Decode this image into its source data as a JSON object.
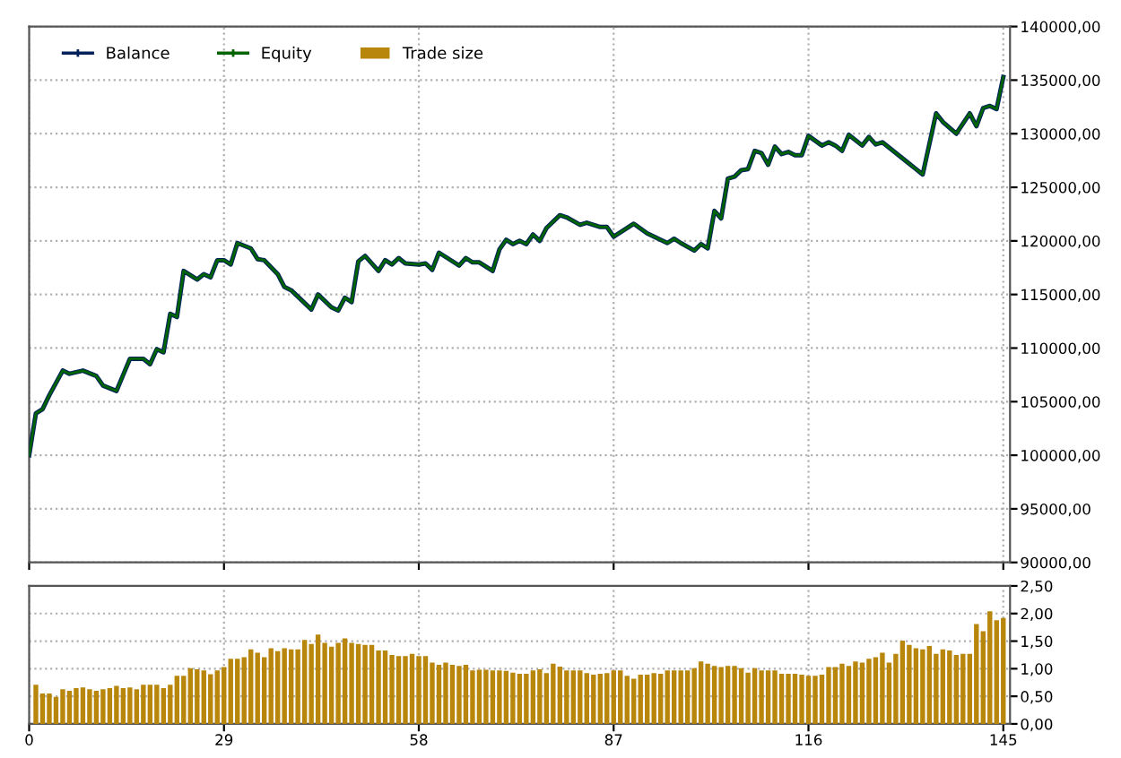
{
  "chart_data": [
    {
      "type": "line",
      "x": [
        0,
        1,
        2,
        3,
        5,
        6,
        8,
        10,
        11,
        13,
        14,
        15,
        17,
        18,
        19,
        20,
        21,
        22,
        23,
        25,
        26,
        27,
        28,
        29,
        30,
        31,
        33,
        34,
        35,
        37,
        38,
        39,
        42,
        43,
        45,
        46,
        47,
        48,
        49,
        50,
        52,
        53,
        54,
        55,
        56,
        58,
        59,
        60,
        61,
        64,
        65,
        66,
        67,
        69,
        70,
        71,
        72,
        73,
        74,
        75,
        76,
        77,
        79,
        80,
        82,
        83,
        85,
        86,
        87,
        90,
        92,
        95,
        96,
        97,
        99,
        100,
        101,
        102,
        103,
        104,
        105,
        106,
        107,
        108,
        109,
        110,
        111,
        112,
        113,
        114,
        115,
        116,
        118,
        119,
        120,
        121,
        122,
        124,
        125,
        126,
        127,
        133,
        135,
        136,
        138,
        140,
        141,
        142,
        143,
        144,
        145
      ],
      "series": [
        {
          "name": "Balance",
          "color": "#00205a",
          "values": [
            100000,
            103900,
            104300,
            105600,
            107900,
            107600,
            107900,
            107400,
            106500,
            106000,
            107500,
            109000,
            109000,
            108500,
            109900,
            109600,
            113200,
            112900,
            117200,
            116400,
            116900,
            116600,
            118200,
            118200,
            117800,
            119800,
            119300,
            118300,
            118200,
            116900,
            115700,
            115400,
            113600,
            115000,
            113800,
            113500,
            114700,
            114300,
            118100,
            118600,
            117200,
            118200,
            117800,
            118400,
            117900,
            117800,
            117900,
            117300,
            118900,
            117700,
            118400,
            118000,
            118000,
            117200,
            119200,
            120100,
            119700,
            120000,
            119700,
            120600,
            120000,
            121200,
            122400,
            122200,
            121500,
            121700,
            121300,
            121300,
            120400,
            121600,
            120700,
            119800,
            120200,
            119800,
            119100,
            119700,
            119300,
            122800,
            122100,
            125800,
            126000,
            126600,
            126700,
            128400,
            128200,
            127100,
            128800,
            128100,
            128300,
            128000,
            128000,
            129800,
            128900,
            129200,
            128900,
            128400,
            129900,
            128900,
            129700,
            129000,
            129200,
            126200,
            131900,
            131100,
            130000,
            131900,
            130700,
            132400,
            132600,
            132300,
            135300
          ]
        },
        {
          "name": "Equity",
          "color": "#006400",
          "values": [
            100000,
            103900,
            104300,
            105600,
            107900,
            107600,
            107900,
            107400,
            106500,
            106000,
            107500,
            109000,
            109000,
            108500,
            109900,
            109600,
            113200,
            112900,
            117200,
            116400,
            116900,
            116600,
            118200,
            118200,
            117800,
            119800,
            119300,
            118300,
            118200,
            116900,
            115700,
            115400,
            113600,
            115000,
            113800,
            113500,
            114700,
            114300,
            118100,
            118600,
            117200,
            118200,
            117800,
            118400,
            117900,
            117800,
            117900,
            117300,
            118900,
            117700,
            118400,
            118000,
            118000,
            117200,
            119200,
            120100,
            119700,
            120000,
            119700,
            120600,
            120000,
            121200,
            122400,
            122200,
            121500,
            121700,
            121300,
            121300,
            120400,
            121600,
            120700,
            119800,
            120200,
            119800,
            119100,
            119700,
            119300,
            122800,
            122100,
            125800,
            126000,
            126600,
            126700,
            128400,
            128200,
            127100,
            128800,
            128100,
            128300,
            128000,
            128000,
            129800,
            128900,
            129200,
            128900,
            128400,
            129900,
            128900,
            129700,
            129000,
            129200,
            126200,
            131900,
            131100,
            130000,
            131900,
            130700,
            132400,
            132600,
            132300,
            135300
          ]
        }
      ],
      "xlim": [
        0,
        146
      ],
      "xticks": [
        0,
        29,
        58,
        87,
        116,
        145
      ],
      "ylim": [
        90000,
        140000
      ],
      "yticks": [
        {
          "value": 90000,
          "label": "90000,00"
        },
        {
          "value": 95000,
          "label": "95000,00"
        },
        {
          "value": 100000,
          "label": "100000,00"
        },
        {
          "value": 105000,
          "label": "105000,00"
        },
        {
          "value": 110000,
          "label": "110000,00"
        },
        {
          "value": 115000,
          "label": "115000,00"
        },
        {
          "value": 120000,
          "label": "120000,00"
        },
        {
          "value": 125000,
          "label": "125000,00"
        },
        {
          "value": 130000,
          "label": "130000,00"
        },
        {
          "value": 135000,
          "label": "135000,00"
        },
        {
          "value": 140000,
          "label": "140000,00"
        }
      ],
      "tick_labels": "y",
      "grid": true,
      "legend": "top left",
      "marker": "none",
      "line_style": "solid"
    },
    {
      "type": "bar",
      "x": [
        1,
        2,
        3,
        4,
        5,
        6,
        7,
        8,
        9,
        10,
        11,
        12,
        13,
        14,
        15,
        16,
        17,
        18,
        19,
        20,
        21,
        22,
        23,
        24,
        25,
        26,
        27,
        28,
        29,
        30,
        31,
        32,
        33,
        34,
        35,
        36,
        37,
        38,
        39,
        40,
        41,
        42,
        43,
        44,
        45,
        46,
        47,
        48,
        49,
        50,
        51,
        52,
        53,
        54,
        55,
        56,
        57,
        58,
        59,
        60,
        61,
        62,
        63,
        64,
        65,
        66,
        67,
        68,
        69,
        70,
        71,
        72,
        73,
        74,
        75,
        76,
        77,
        78,
        79,
        80,
        81,
        82,
        83,
        84,
        85,
        86,
        87,
        88,
        89,
        90,
        91,
        92,
        93,
        94,
        95,
        96,
        97,
        98,
        99,
        100,
        101,
        102,
        103,
        104,
        105,
        106,
        107,
        108,
        109,
        110,
        111,
        112,
        113,
        114,
        115,
        116,
        117,
        118,
        119,
        120,
        121,
        122,
        123,
        124,
        125,
        126,
        127,
        128,
        129,
        130,
        131,
        132,
        133,
        134,
        135,
        136,
        137,
        138,
        139,
        140,
        141,
        142,
        143,
        144,
        145
      ],
      "series": [
        {
          "name": "Trade size",
          "color": "#b8860b",
          "values": [
            0.71,
            0.55,
            0.55,
            0.49,
            0.63,
            0.6,
            0.65,
            0.66,
            0.63,
            0.6,
            0.63,
            0.65,
            0.69,
            0.65,
            0.66,
            0.63,
            0.71,
            0.71,
            0.71,
            0.65,
            0.71,
            0.87,
            0.87,
            1.01,
            0.99,
            0.97,
            0.9,
            0.97,
            1.03,
            1.18,
            1.18,
            1.21,
            1.35,
            1.29,
            1.21,
            1.37,
            1.32,
            1.37,
            1.35,
            1.35,
            1.52,
            1.45,
            1.62,
            1.47,
            1.4,
            1.47,
            1.55,
            1.47,
            1.45,
            1.43,
            1.43,
            1.33,
            1.33,
            1.25,
            1.23,
            1.23,
            1.27,
            1.23,
            1.23,
            1.11,
            1.07,
            1.11,
            1.07,
            1.05,
            1.07,
            0.97,
            0.98,
            0.98,
            0.97,
            0.97,
            0.96,
            0.93,
            0.91,
            0.91,
            0.97,
            0.99,
            0.92,
            1.09,
            1.04,
            0.97,
            0.97,
            0.97,
            0.92,
            0.89,
            0.91,
            0.92,
            0.97,
            0.97,
            0.87,
            0.82,
            0.89,
            0.89,
            0.92,
            0.91,
            0.97,
            0.97,
            0.97,
            0.97,
            1.01,
            1.13,
            1.09,
            1.05,
            1.03,
            1.05,
            1.05,
            1.01,
            0.93,
            1.01,
            0.97,
            0.97,
            0.97,
            0.91,
            0.91,
            0.91,
            0.89,
            0.87,
            0.87,
            0.89,
            1.03,
            1.03,
            1.09,
            1.05,
            1.13,
            1.11,
            1.18,
            1.21,
            1.29,
            1.11,
            1.27,
            1.51,
            1.43,
            1.37,
            1.35,
            1.41,
            1.27,
            1.35,
            1.33,
            1.25,
            1.27,
            1.27,
            1.81,
            1.68,
            2.04,
            1.88,
            1.92
          ]
        }
      ],
      "xlim": [
        0,
        146
      ],
      "xticks": [
        0,
        29,
        58,
        87,
        116,
        145
      ],
      "ylim": [
        0,
        2.5
      ],
      "yticks": [
        {
          "value": 0,
          "label": "0,00"
        },
        {
          "value": 0.5,
          "label": "0,50"
        },
        {
          "value": 1,
          "label": "1,00"
        },
        {
          "value": 1.5,
          "label": "1,50"
        },
        {
          "value": 2,
          "label": "2,00"
        },
        {
          "value": 2.5,
          "label": "2,50"
        }
      ],
      "grid": true
    }
  ]
}
